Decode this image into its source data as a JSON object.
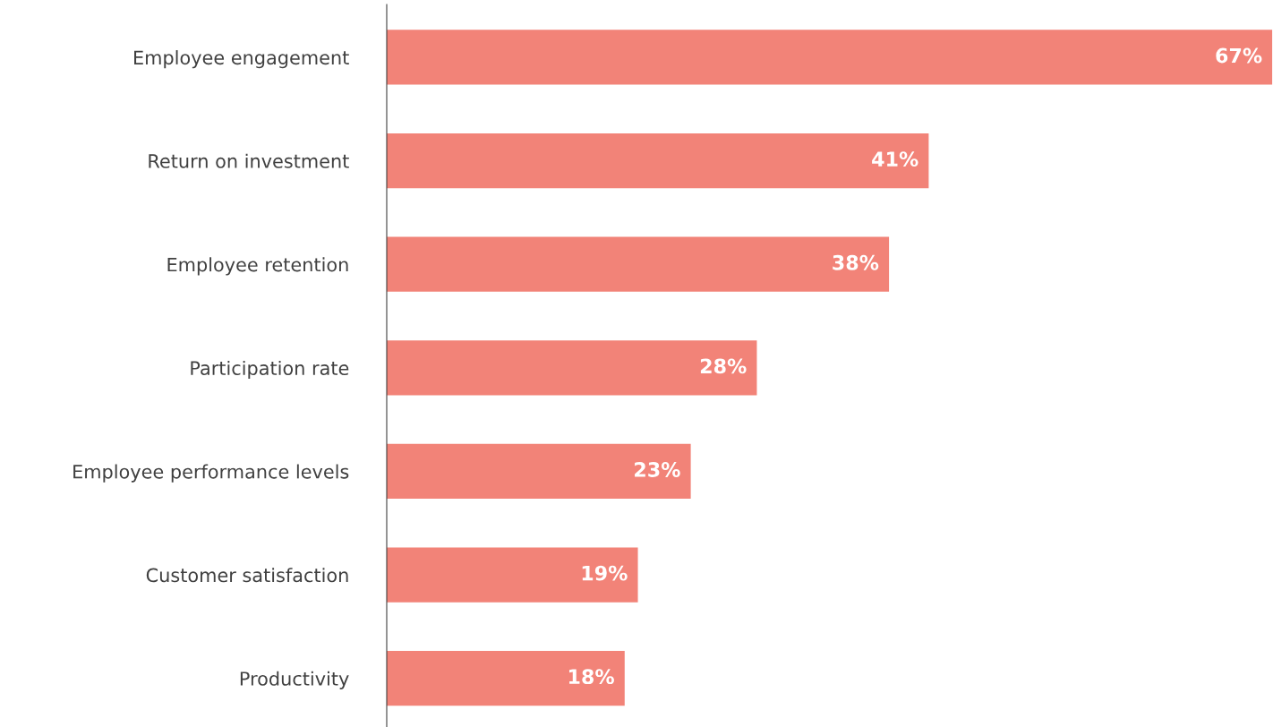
{
  "chart_data": {
    "type": "bar",
    "orientation": "horizontal",
    "categories": [
      "Employee engagement",
      "Return on investment",
      "Employee retention",
      "Participation rate",
      "Employee performance levels",
      "Customer satisfaction",
      "Productivity"
    ],
    "values": [
      67,
      41,
      38,
      28,
      23,
      19,
      18
    ],
    "value_labels": [
      "67%",
      "41%",
      "38%",
      "28%",
      "23%",
      "19%",
      "18%"
    ],
    "color": "#f28378",
    "xlim": [
      0,
      67
    ],
    "tick_labels": "y",
    "grid": false,
    "legend": false
  }
}
